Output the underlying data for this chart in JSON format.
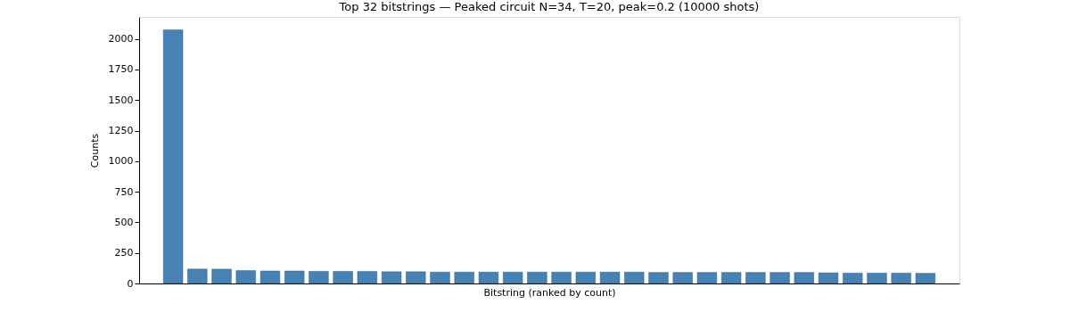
{
  "chart_data": {
    "type": "bar",
    "title": "Top 32 bitstrings — Peaked circuit N=34, T=20, peak=0.2 (10000 shots)",
    "xlabel": "Bitstring (ranked by count)",
    "ylabel": "Counts",
    "categories": [
      null,
      null,
      null,
      null,
      null,
      null,
      null,
      null,
      null,
      null,
      null,
      null,
      null,
      null,
      null,
      null,
      null,
      null,
      null,
      null,
      null,
      null,
      null,
      null,
      null,
      null,
      null,
      null,
      null,
      null,
      null,
      null
    ],
    "values": [
      2075,
      118,
      117,
      105,
      102,
      102,
      99,
      99,
      99,
      96,
      96,
      93,
      93,
      93,
      93,
      93,
      93,
      93,
      93,
      93,
      90,
      90,
      90,
      90,
      90,
      90,
      90,
      87,
      85,
      85,
      85,
      83
    ],
    "color": "#4682b4",
    "ylim": [
      0,
      2180
    ],
    "yticks": [
      0,
      250,
      500,
      750,
      1000,
      1250,
      1500,
      1750,
      2000
    ],
    "grid": false,
    "tick_labels": "y"
  }
}
